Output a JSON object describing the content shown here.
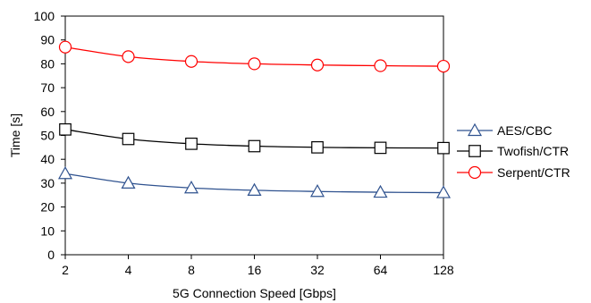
{
  "chart_data": {
    "type": "line",
    "title": "",
    "xlabel": "5G Connection Speed [Gbps]",
    "ylabel": "Time [s]",
    "categories": [
      "2",
      "4",
      "8",
      "16",
      "32",
      "64",
      "128"
    ],
    "ylim": [
      0,
      100
    ],
    "yticks": [
      0,
      10,
      20,
      30,
      40,
      50,
      60,
      70,
      80,
      90,
      100
    ],
    "grid": false,
    "legend_position": "right",
    "series": [
      {
        "name": "AES/CBC",
        "marker": "triangle",
        "color": "#2F528F",
        "values": [
          34,
          30,
          28,
          27,
          26.5,
          26.2,
          26
        ]
      },
      {
        "name": "Twofish/CTR",
        "marker": "square",
        "color": "#000000",
        "values": [
          52.5,
          48.5,
          46.5,
          45.5,
          45,
          44.8,
          44.7
        ]
      },
      {
        "name": "Serpent/CTR",
        "marker": "circle",
        "color": "#FF0000",
        "values": [
          87,
          83,
          81,
          80,
          79.5,
          79.2,
          79
        ]
      }
    ]
  }
}
